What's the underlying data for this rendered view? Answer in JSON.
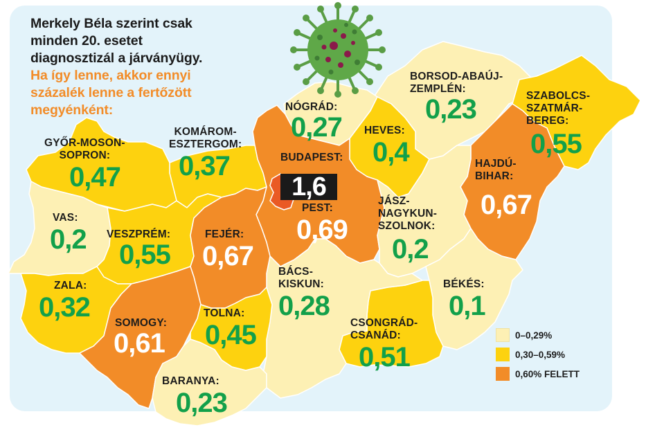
{
  "headline": {
    "black_lines": [
      "Merkely Béla szerint csak",
      "minden 20. esetet",
      "diagnosztizál a járványügy."
    ],
    "orange_lines": [
      "Ha így lenne, akkor ennyi",
      "százalék lenne a fertőzött",
      "megyénként:"
    ]
  },
  "colors": {
    "background_panel": "#e3f3fa",
    "low": "#fdf0b4",
    "mid": "#fdd20f",
    "high": "#f28c28",
    "budapest": "#ea5a24",
    "value_green": "#12a04a",
    "headline_orange": "#f28c28"
  },
  "icons": {
    "virus": "coronavirus-illustration"
  },
  "counties": {
    "gyor": {
      "name": "GYŐR-MOSON-\nSOPRON:",
      "value": "0,47",
      "category": "mid"
    },
    "komarom": {
      "name": "KOMÁROM-\nESZTERGOM:",
      "value": "0,37",
      "category": "mid"
    },
    "nograd": {
      "name": "NÓGRÁD:",
      "value": "0,27",
      "category": "low"
    },
    "borsod": {
      "name": "BORSOD-ABAÚJ-\nZEMPLÉN:",
      "value": "0,23",
      "category": "low"
    },
    "szabolcs": {
      "name": "SZABOLCS-\nSZATMÁR-\nBEREG:",
      "value": "0,55",
      "category": "mid"
    },
    "heves": {
      "name": "HEVES:",
      "value": "0,4",
      "category": "mid"
    },
    "budapest": {
      "name": "BUDAPEST:",
      "value": "1,6",
      "category": "high"
    },
    "pest": {
      "name": "PEST:",
      "value": "0,69",
      "category": "high"
    },
    "hajdu": {
      "name": "HAJDÚ-\nBIHAR:",
      "value": "0,67",
      "category": "high"
    },
    "vas": {
      "name": "VAS:",
      "value": "0,2",
      "category": "low"
    },
    "veszprem": {
      "name": "VESZPRÉM:",
      "value": "0,55",
      "category": "mid"
    },
    "fejer": {
      "name": "FEJÉR:",
      "value": "0,67",
      "category": "high"
    },
    "jasz": {
      "name": "JÁSZ-\nNAGYKUN-\nSZOLNOK:",
      "value": "0,2",
      "category": "low"
    },
    "zala": {
      "name": "ZALA:",
      "value": "0,32",
      "category": "mid"
    },
    "bacs": {
      "name": "BÁCS-\nKISKUN:",
      "value": "0,28",
      "category": "low"
    },
    "bekes": {
      "name": "BÉKÉS:",
      "value": "0,1",
      "category": "low"
    },
    "somogy": {
      "name": "SOMOGY:",
      "value": "0,61",
      "category": "high"
    },
    "tolna": {
      "name": "TOLNA:",
      "value": "0,45",
      "category": "mid"
    },
    "csongrad": {
      "name": "CSONGRÁD-\nCSANÁD:",
      "value": "0,51",
      "category": "mid"
    },
    "baranya": {
      "name": "BARANYA:",
      "value": "0,23",
      "category": "low"
    }
  },
  "legend": {
    "items": [
      {
        "label": "0–0,29%",
        "color": "#fdf0b4"
      },
      {
        "label": "0,30–0,59%",
        "color": "#fdd20f"
      },
      {
        "label": "0,60% FELETT",
        "color": "#f28c28"
      }
    ]
  }
}
